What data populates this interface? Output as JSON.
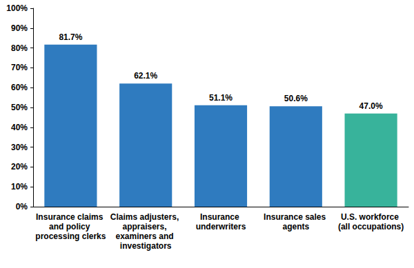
{
  "chart_data": {
    "type": "bar",
    "categories": [
      "Insurance claims and policy processing clerks",
      "Claims adjusters, appraisers, examiners and investigators",
      "Insurance underwriters",
      "Insurance sales agents",
      "U.S. workforce (all occupations)"
    ],
    "values": [
      81.7,
      62.1,
      51.1,
      50.6,
      47.0
    ],
    "value_labels": [
      "81.7%",
      "62.1%",
      "51.1%",
      "50.6%",
      "47.0%"
    ],
    "colors": [
      "#2f7bbf",
      "#2f7bbf",
      "#2f7bbf",
      "#2f7bbf",
      "#38b39b"
    ],
    "ylim": [
      0,
      100
    ],
    "yticks": [
      {
        "value": 0,
        "label": "0%"
      },
      {
        "value": 10,
        "label": "10%"
      },
      {
        "value": 20,
        "label": "20%"
      },
      {
        "value": 30,
        "label": "30%"
      },
      {
        "value": 40,
        "label": "40%"
      },
      {
        "value": 50,
        "label": "50%"
      },
      {
        "value": 60,
        "label": "60%"
      },
      {
        "value": 70,
        "label": "70%"
      },
      {
        "value": 80,
        "label": "80%"
      },
      {
        "value": 90,
        "label": "90%"
      },
      {
        "value": 100,
        "label": "100%"
      }
    ],
    "grid": false,
    "data_labels": true
  }
}
